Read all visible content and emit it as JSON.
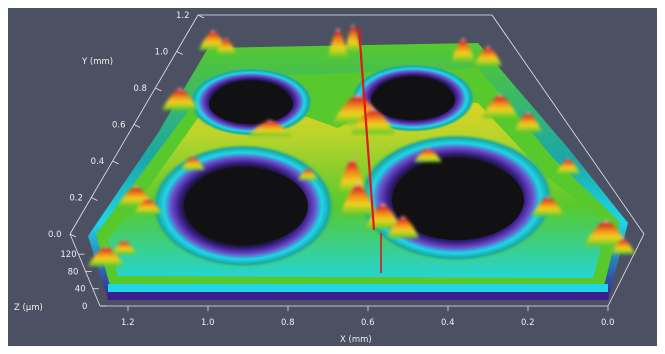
{
  "chart_data": {
    "type": "surface-3d",
    "description_text": "",
    "axes": {
      "x": {
        "label": "X (mm)",
        "ticks": [
          "1.2",
          "1.0",
          "0.8",
          "0.6",
          "0.4",
          "0.2",
          "0.0"
        ],
        "range": [
          1.2,
          0.0
        ]
      },
      "y": {
        "label": "Y (mm)",
        "ticks": [
          "0.0",
          "0.2",
          "0.4",
          "0.6",
          "0.8",
          "1.0",
          "1.2"
        ],
        "range": [
          0.0,
          1.2
        ]
      },
      "z": {
        "label": "Z (µm)",
        "ticks": [
          "0",
          "40",
          "80",
          "120"
        ],
        "range": [
          0,
          120
        ]
      }
    },
    "colormap": [
      "#3b1f8c",
      "#6a4fc8",
      "#1fd6e6",
      "#1aa7a8",
      "#57c92d",
      "#c7d52b",
      "#f2d21d",
      "#f08a1e",
      "#d9231a",
      "#f4f0ee"
    ],
    "features": {
      "pits": 4,
      "spike_color": "#e01818"
    }
  },
  "labels": {
    "x_label": "X (mm)",
    "y_label": "Y (mm)",
    "z_label": "Z (µm)",
    "x_ticks": [
      "1.2",
      "1.0",
      "0.8",
      "0.6",
      "0.4",
      "0.2",
      "0.0"
    ],
    "y_ticks": [
      "0.0",
      "0.2",
      "0.4",
      "0.6",
      "0.8",
      "1.0",
      "1.2"
    ],
    "z_ticks": [
      "0",
      "40",
      "80",
      "120"
    ]
  }
}
